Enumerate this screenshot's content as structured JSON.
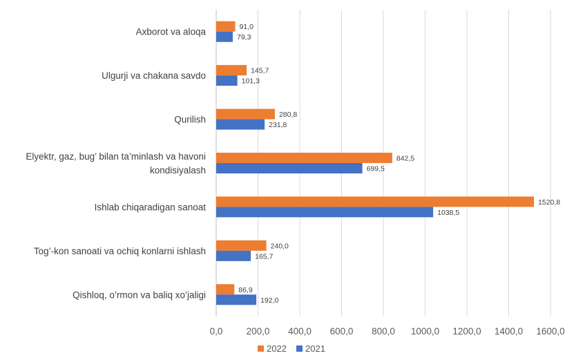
{
  "chart_data": {
    "type": "bar",
    "orientation": "horizontal",
    "categories": [
      "Axborot va aloqa",
      "Ulgurji va chakana savdo",
      "Qurilish",
      "Elyektr, gaz, bug’ bilan ta’minlash va havoni kondisiyalash",
      "Ishlab chiqaradigan sanoat",
      "Tog’-kon sanoati va ochiq konlarni ishlash",
      "Qishloq, o’rmon va baliq xo’jaligi"
    ],
    "category_lines": [
      [
        "Axborot  va  aloqa"
      ],
      [
        "Ulgurji va chakana savdo"
      ],
      [
        "Qurilish"
      ],
      [
        "Elyektr,  gaz, bug’ bilan ta’minlash va havoni",
        "kondisiyalash"
      ],
      [
        "Ishlab chiqaradigan sanoat"
      ],
      [
        "Tog’-kon sanoati  va ochiq konlarni ishlash"
      ],
      [
        "Qishloq, o’rmon va baliq xo’jaligi"
      ]
    ],
    "series": [
      {
        "name": "2022",
        "color": "#ED7D31",
        "values": [
          91.0,
          145.7,
          280.8,
          842.5,
          1520.8,
          240.0,
          86.9
        ],
        "labels": [
          "91,0",
          "145,7",
          "280,8",
          "842,5",
          "1520,8",
          "240,0",
          "86,9"
        ]
      },
      {
        "name": "2021",
        "color": "#4472C4",
        "values": [
          79.3,
          101.3,
          231.8,
          699.5,
          1038.5,
          165.7,
          192.0
        ],
        "labels": [
          "79,3",
          "101,3",
          "231,8",
          "699,5",
          "1038,5",
          "165,7",
          "192,0"
        ]
      }
    ],
    "xlim": [
      0,
      1600
    ],
    "xticks": [
      0,
      200,
      400,
      600,
      800,
      1000,
      1200,
      1400,
      1600
    ],
    "xtick_labels": [
      "0,0",
      "200,0",
      "400,0",
      "600,0",
      "800,0",
      "1000,0",
      "1200,0",
      "1400,0",
      "1600,0"
    ],
    "grid": true,
    "legend": {
      "position": "bottom",
      "entries": [
        "2022",
        "2021"
      ]
    }
  }
}
